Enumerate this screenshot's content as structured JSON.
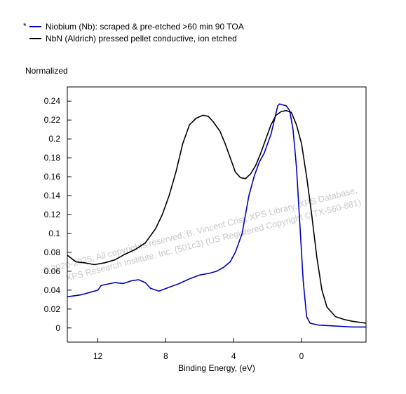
{
  "chart_data": {
    "type": "line",
    "title": "",
    "xlabel": "Binding Energy, (eV)",
    "ylabel": "Normalized",
    "xlim": [
      13.8,
      -3.8
    ],
    "ylim": [
      -0.015,
      0.255
    ],
    "x_reversed": true,
    "grid": false,
    "legend_position": "top-left",
    "legend_marker": "*",
    "x_ticks": [
      12,
      8,
      4,
      0
    ],
    "y_ticks": [
      0,
      0.02,
      0.04,
      0.06,
      0.08,
      0.1,
      0.12,
      0.14,
      0.16,
      0.18,
      0.2,
      0.22,
      0.24
    ],
    "watermark": [
      "©  2020-2025,  All copyrights reserved,   B. Vincent Crist,   XPS Library, XPS Database,",
      "XPS Research Institute, Inc. (501c3)   (US Registered Copyright © TX-560-881)"
    ],
    "series": [
      {
        "name": "Niobium (Nb): scraped & pre-etched >60 min 90 TOA",
        "color": "#0000c0",
        "points": [
          [
            13.8,
            0.033
          ],
          [
            13.0,
            0.035
          ],
          [
            12.0,
            0.04
          ],
          [
            11.8,
            0.045
          ],
          [
            11.0,
            0.048
          ],
          [
            10.5,
            0.047
          ],
          [
            10.0,
            0.05
          ],
          [
            9.6,
            0.051
          ],
          [
            9.2,
            0.048
          ],
          [
            8.9,
            0.042
          ],
          [
            8.4,
            0.039
          ],
          [
            7.8,
            0.043
          ],
          [
            7.2,
            0.047
          ],
          [
            6.6,
            0.052
          ],
          [
            6.0,
            0.056
          ],
          [
            5.4,
            0.058
          ],
          [
            5.0,
            0.06
          ],
          [
            4.6,
            0.064
          ],
          [
            4.2,
            0.07
          ],
          [
            3.9,
            0.08
          ],
          [
            3.7,
            0.09
          ],
          [
            3.5,
            0.1
          ],
          [
            3.3,
            0.12
          ],
          [
            3.1,
            0.14
          ],
          [
            2.8,
            0.16
          ],
          [
            2.5,
            0.175
          ],
          [
            2.2,
            0.185
          ],
          [
            2.0,
            0.195
          ],
          [
            1.8,
            0.205
          ],
          [
            1.6,
            0.22
          ],
          [
            1.4,
            0.235
          ],
          [
            1.3,
            0.237
          ],
          [
            1.1,
            0.236
          ],
          [
            0.9,
            0.235
          ],
          [
            0.7,
            0.23
          ],
          [
            0.5,
            0.21
          ],
          [
            0.3,
            0.17
          ],
          [
            0.1,
            0.11
          ],
          [
            -0.1,
            0.05
          ],
          [
            -0.3,
            0.012
          ],
          [
            -0.5,
            0.005
          ],
          [
            -1.0,
            0.003
          ],
          [
            -2.0,
            0.002
          ],
          [
            -3.0,
            0.001
          ],
          [
            -3.8,
            0.001
          ]
        ]
      },
      {
        "name": "NbN (Aldrich) pressed pellet conductive, ion etched",
        "color": "#000000",
        "points": [
          [
            13.8,
            0.077
          ],
          [
            13.3,
            0.07
          ],
          [
            12.8,
            0.069
          ],
          [
            12.2,
            0.067
          ],
          [
            11.6,
            0.069
          ],
          [
            11.0,
            0.072
          ],
          [
            10.4,
            0.078
          ],
          [
            9.8,
            0.083
          ],
          [
            9.2,
            0.09
          ],
          [
            8.6,
            0.105
          ],
          [
            8.2,
            0.12
          ],
          [
            7.8,
            0.14
          ],
          [
            7.4,
            0.165
          ],
          [
            7.0,
            0.195
          ],
          [
            6.6,
            0.215
          ],
          [
            6.2,
            0.222
          ],
          [
            5.8,
            0.225
          ],
          [
            5.5,
            0.224
          ],
          [
            5.2,
            0.218
          ],
          [
            4.8,
            0.208
          ],
          [
            4.5,
            0.195
          ],
          [
            4.2,
            0.18
          ],
          [
            3.9,
            0.165
          ],
          [
            3.6,
            0.159
          ],
          [
            3.3,
            0.158
          ],
          [
            3.0,
            0.163
          ],
          [
            2.7,
            0.172
          ],
          [
            2.4,
            0.185
          ],
          [
            2.1,
            0.2
          ],
          [
            1.8,
            0.215
          ],
          [
            1.5,
            0.225
          ],
          [
            1.2,
            0.229
          ],
          [
            0.9,
            0.23
          ],
          [
            0.6,
            0.228
          ],
          [
            0.3,
            0.215
          ],
          [
            0.0,
            0.195
          ],
          [
            -0.3,
            0.16
          ],
          [
            -0.6,
            0.12
          ],
          [
            -0.9,
            0.075
          ],
          [
            -1.2,
            0.04
          ],
          [
            -1.5,
            0.022
          ],
          [
            -2.0,
            0.012
          ],
          [
            -2.5,
            0.009
          ],
          [
            -3.0,
            0.007
          ],
          [
            -3.8,
            0.005
          ]
        ]
      }
    ]
  }
}
